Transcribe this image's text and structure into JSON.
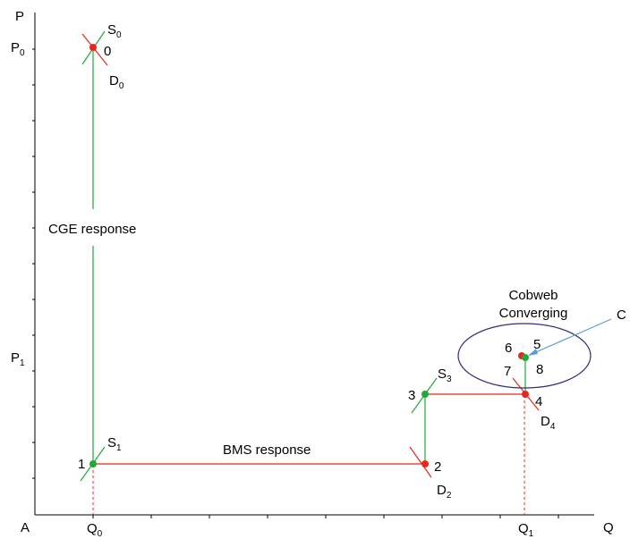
{
  "axes": {
    "y_label": "P",
    "x_label": "Q",
    "origin_label": "A",
    "y_ticks": [
      {
        "base": "P",
        "sub": "0"
      },
      {
        "base": "P",
        "sub": "1"
      }
    ],
    "x_ticks": [
      {
        "base": "Q",
        "sub": "0"
      },
      {
        "base": "Q",
        "sub": "1"
      }
    ]
  },
  "curves": {
    "s0": {
      "base": "S",
      "sub": "0"
    },
    "d0": {
      "base": "D",
      "sub": "0"
    },
    "s1": {
      "base": "S",
      "sub": "1"
    },
    "d2": {
      "base": "D",
      "sub": "2"
    },
    "s3": {
      "base": "S",
      "sub": "3"
    },
    "d4": {
      "base": "D",
      "sub": "4"
    }
  },
  "points": [
    "0",
    "1",
    "2",
    "3",
    "4",
    "5",
    "6",
    "7",
    "8"
  ],
  "annotations": {
    "cge": "CGE response",
    "bms": "BMS response",
    "cobweb_line1": "Cobweb",
    "cobweb_line2": "Converging",
    "c": "C"
  },
  "colors": {
    "supply": "#22a83a",
    "demand": "#e8261b",
    "axis": "#000000",
    "ellipse": "#2d2d7a",
    "pointer": "#5b9bd5"
  }
}
